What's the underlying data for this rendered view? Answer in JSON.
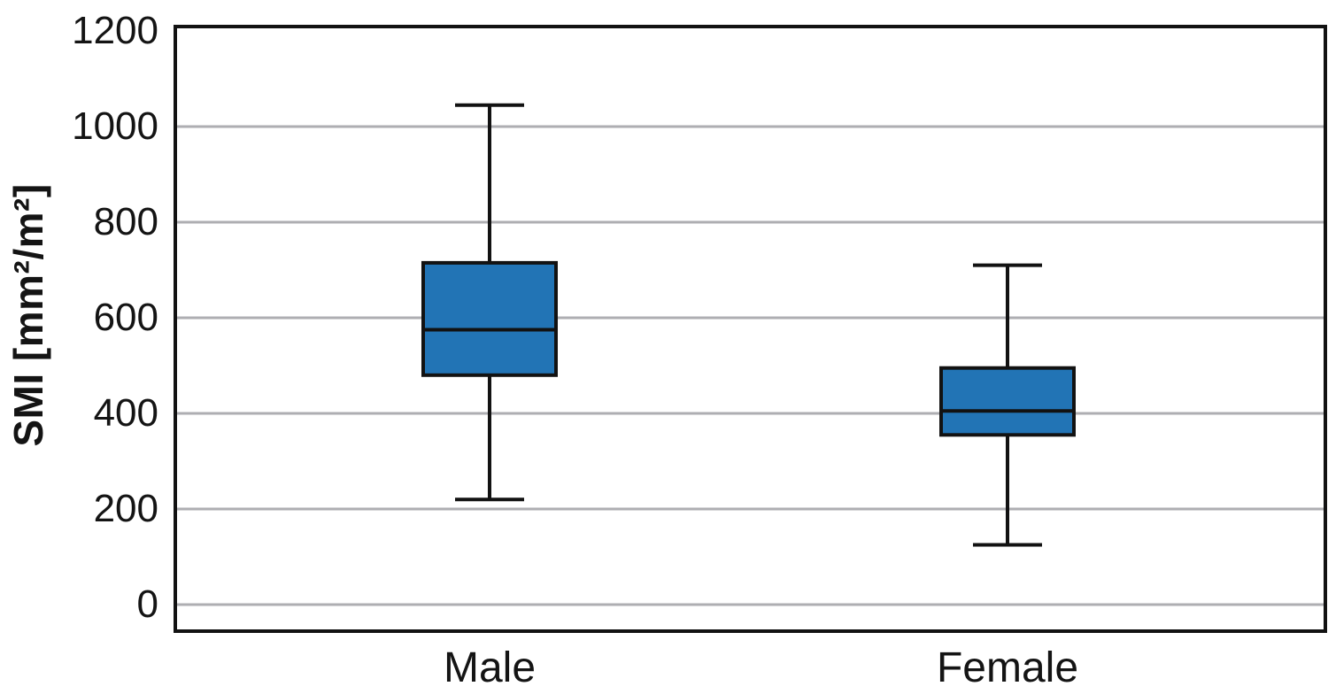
{
  "chart_data": {
    "type": "box",
    "title": "",
    "xlabel": "",
    "ylabel": "SMI [mm²/m²]",
    "categories": [
      "Male",
      "Female"
    ],
    "yticks": [
      0,
      200,
      400,
      600,
      800,
      1000,
      1200
    ],
    "grid_ticks": [
      0,
      200,
      400,
      600,
      800,
      1000
    ],
    "ylim": [
      -55,
      1210
    ],
    "legend": "none",
    "grid": "horizontal",
    "series": [
      {
        "name": "Male",
        "min": 220,
        "q1": 480,
        "median": 575,
        "q3": 715,
        "max": 1045
      },
      {
        "name": "Female",
        "min": 125,
        "q1": 355,
        "median": 405,
        "q3": 495,
        "max": 710
      }
    ],
    "colors": {
      "box_fill": "#2274B5",
      "line": "#121212",
      "gridline": "#AEAEB2",
      "background": "#ffffff",
      "text": "#141414"
    }
  }
}
